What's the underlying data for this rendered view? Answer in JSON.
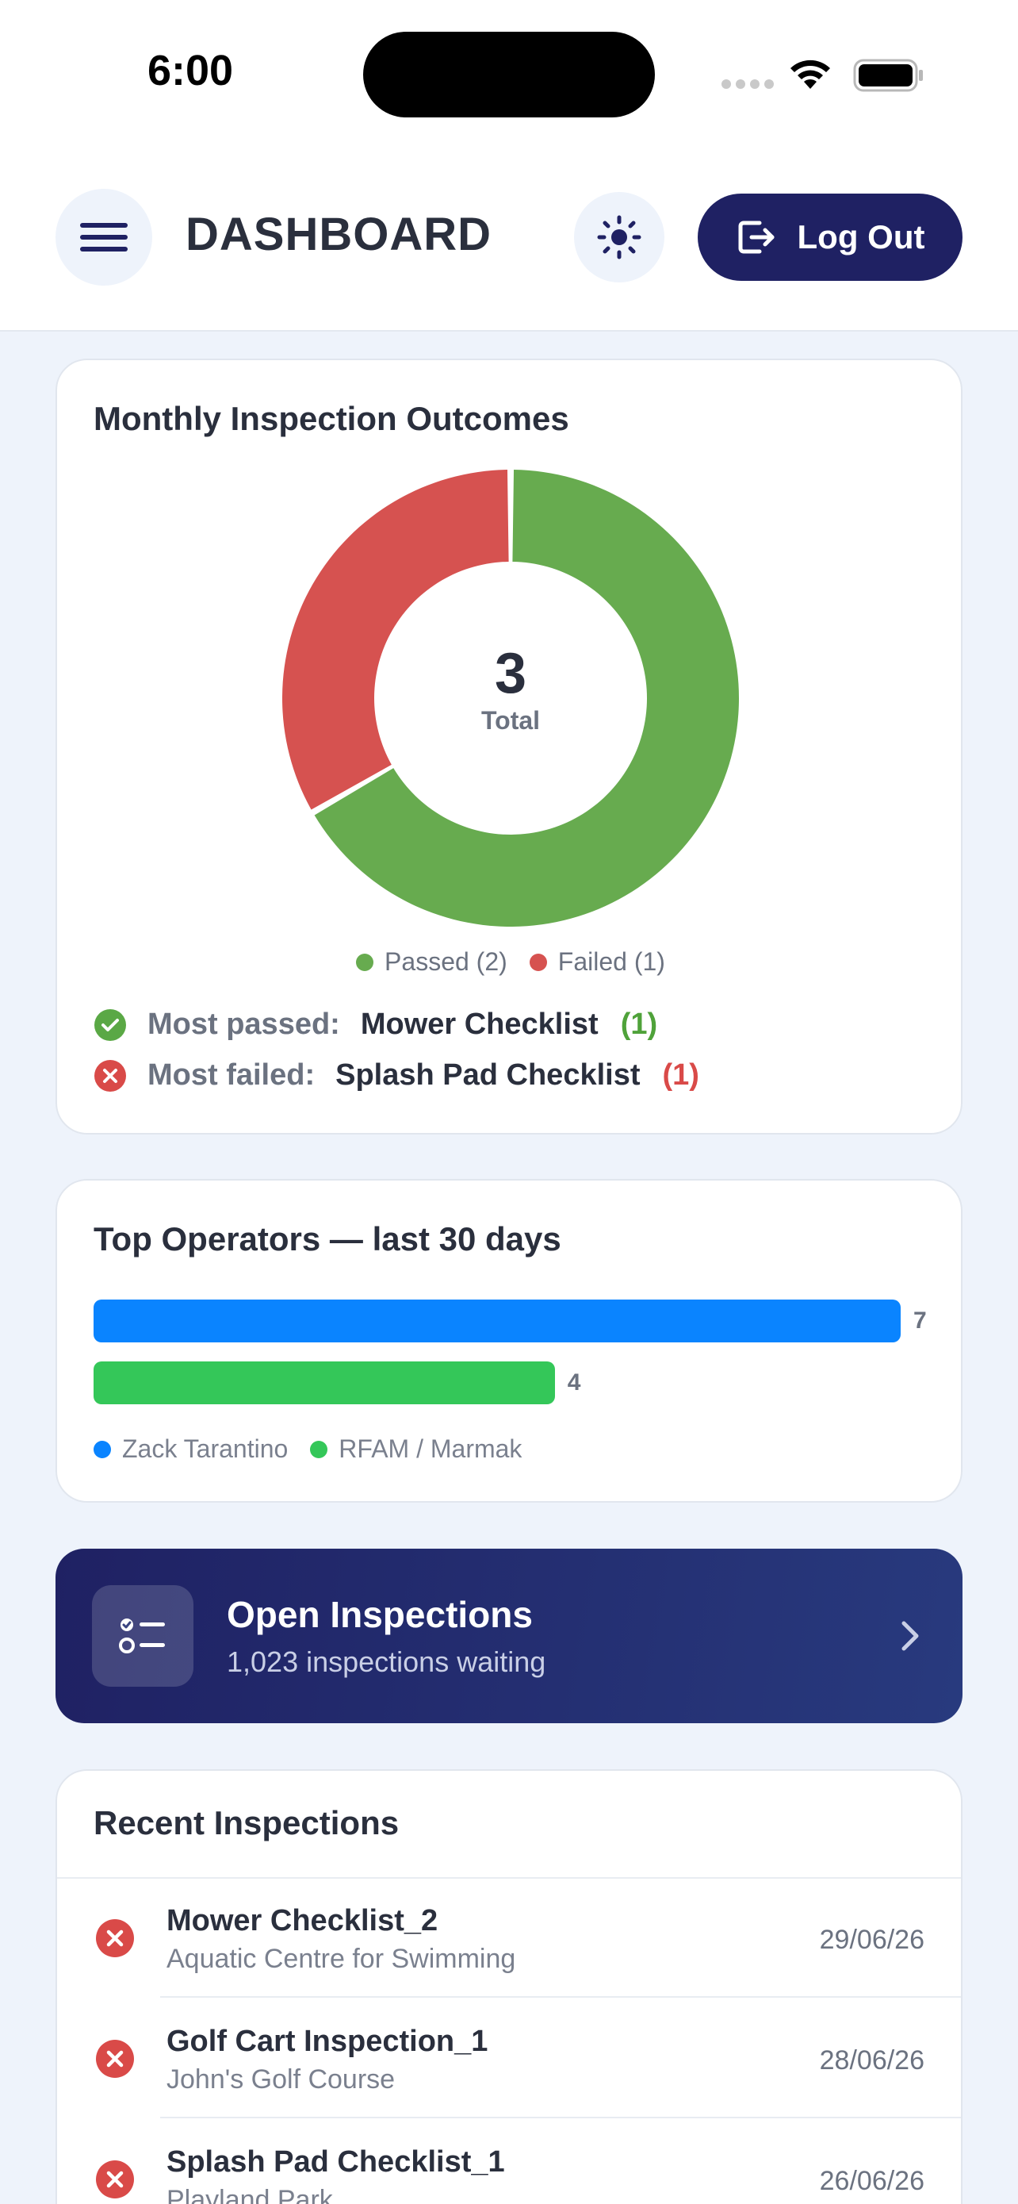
{
  "status_bar": {
    "time": "6:00"
  },
  "header": {
    "title": "DASHBOARD",
    "logout_label": "Log Out"
  },
  "outcomes_card": {
    "title": "Monthly Inspection Outcomes",
    "total": "3",
    "total_label": "Total",
    "legend": [
      {
        "label": "Passed (2)",
        "color": "#67ab4f"
      },
      {
        "label": "Failed (1)",
        "color": "#d65250"
      }
    ],
    "most_passed_label": "Most passed:",
    "most_passed_value": "Mower Checklist",
    "most_passed_count": "(1)",
    "most_failed_label": "Most failed:",
    "most_failed_value": "Splash Pad Checklist",
    "most_failed_count": "(1)"
  },
  "chart_data": [
    {
      "type": "pie",
      "donut": true,
      "labels": [
        "Passed",
        "Failed"
      ],
      "values": [
        2,
        1
      ],
      "colors": [
        "#67ab4f",
        "#d65250"
      ],
      "center_text": "3",
      "center_label": "Total"
    },
    {
      "type": "bar",
      "orientation": "horizontal",
      "categories": [
        "Zack Tarantino",
        "RFAM / Marmak"
      ],
      "values": [
        7,
        4
      ],
      "colors": [
        "#0a84ff",
        "#34c759"
      ],
      "title": "Top Operators — last 30 days"
    }
  ],
  "operators_card": {
    "title": "Top Operators — last 30 days",
    "bars": [
      {
        "name": "Zack Tarantino",
        "value": "7",
        "color": "#0a84ff"
      },
      {
        "name": "RFAM / Marmak",
        "value": "4",
        "color": "#34c759"
      }
    ]
  },
  "open_inspections": {
    "title": "Open Inspections",
    "subtitle": "1,023 inspections waiting"
  },
  "recent_card": {
    "title": "Recent Inspections",
    "items": [
      {
        "name": "Mower Checklist_2",
        "location": "Aquatic Centre for Swimming",
        "date": "29/06/26",
        "status": "failed"
      },
      {
        "name": "Golf Cart Inspection_1",
        "location": "John's Golf Course",
        "date": "28/06/26",
        "status": "failed"
      },
      {
        "name": "Splash Pad Checklist_1",
        "location": "Playland Park",
        "date": "26/06/26",
        "status": "failed"
      }
    ]
  }
}
